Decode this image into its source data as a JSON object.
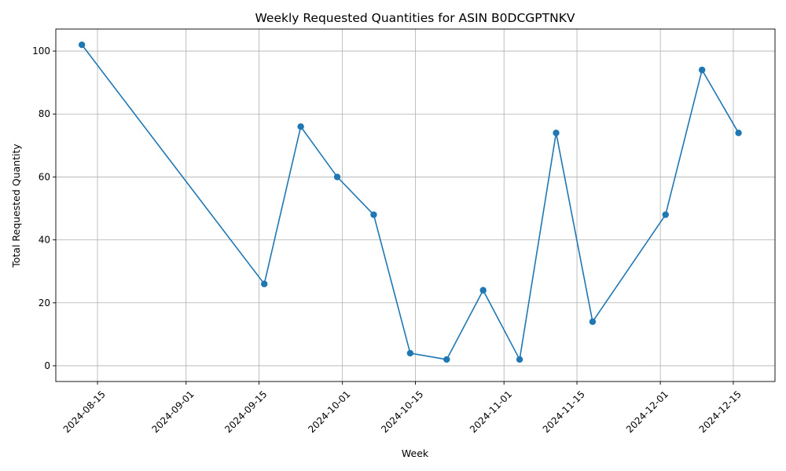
{
  "chart_data": {
    "type": "line",
    "title": "Weekly Requested Quantities for ASIN B0DCGPTNKV",
    "xlabel": "Week",
    "ylabel": "Total Requested Quantity",
    "x_ticks": [
      "2024-08-15",
      "2024-09-01",
      "2024-09-15",
      "2024-10-01",
      "2024-10-15",
      "2024-11-01",
      "2024-11-15",
      "2024-12-01",
      "2024-12-15"
    ],
    "y_ticks": [
      0,
      20,
      40,
      60,
      80,
      100
    ],
    "xlim": [
      "2024-08-07",
      "2024-12-23"
    ],
    "ylim": [
      -5,
      107
    ],
    "grid": true,
    "series": [
      {
        "color": "#1f77b4",
        "marker": "circle",
        "x": [
          "2024-08-12",
          "2024-09-16",
          "2024-09-23",
          "2024-09-30",
          "2024-10-07",
          "2024-10-14",
          "2024-10-21",
          "2024-10-28",
          "2024-11-04",
          "2024-11-11",
          "2024-11-18",
          "2024-12-02",
          "2024-12-09",
          "2024-12-16"
        ],
        "values": [
          102,
          26,
          76,
          60,
          48,
          4,
          2,
          24,
          2,
          74,
          14,
          48,
          94,
          74
        ]
      }
    ]
  }
}
